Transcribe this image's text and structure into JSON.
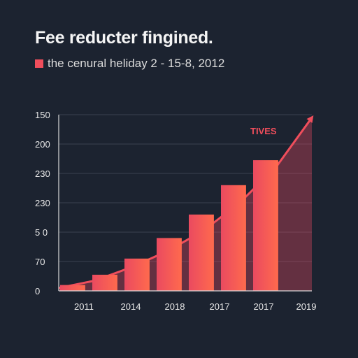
{
  "chart_data": {
    "type": "area",
    "title": "Fee reducter fingined.",
    "subtitle": "the cenural heliday 2 - 15-8, 2012",
    "annotation": "TIVES",
    "y_tick_labels": [
      "150",
      "200",
      "230",
      "230",
      "5 0",
      "70",
      "0"
    ],
    "x_tick_labels": [
      "2011",
      "2014",
      "2018",
      "2017",
      "2017",
      "2019"
    ],
    "ylim": [
      0,
      6
    ],
    "bars": [
      {
        "value": 0.2
      },
      {
        "value": 0.55
      },
      {
        "value": 1.1
      },
      {
        "value": 1.8
      },
      {
        "value": 2.6
      },
      {
        "value": 3.6
      },
      {
        "value": 4.45
      }
    ],
    "curve": [
      {
        "x": 0.0,
        "y": 0.1
      },
      {
        "x": 1.0,
        "y": 0.35
      },
      {
        "x": 2.0,
        "y": 0.8
      },
      {
        "x": 3.0,
        "y": 1.35
      },
      {
        "x": 4.0,
        "y": 2.05
      },
      {
        "x": 5.0,
        "y": 3.0
      },
      {
        "x": 6.0,
        "y": 4.2
      },
      {
        "x": 7.0,
        "y": 5.9
      }
    ],
    "grid": true,
    "colors": {
      "bar_start": "#ea4a60",
      "bar_end": "#ff6a4d",
      "arrow": "#f04e5c",
      "annotation": "#f04e5c",
      "legend": "#f04e5c",
      "grid": "#3a4250",
      "axis": "#d8d8d8",
      "tick_text": "#e8e8e8"
    }
  }
}
